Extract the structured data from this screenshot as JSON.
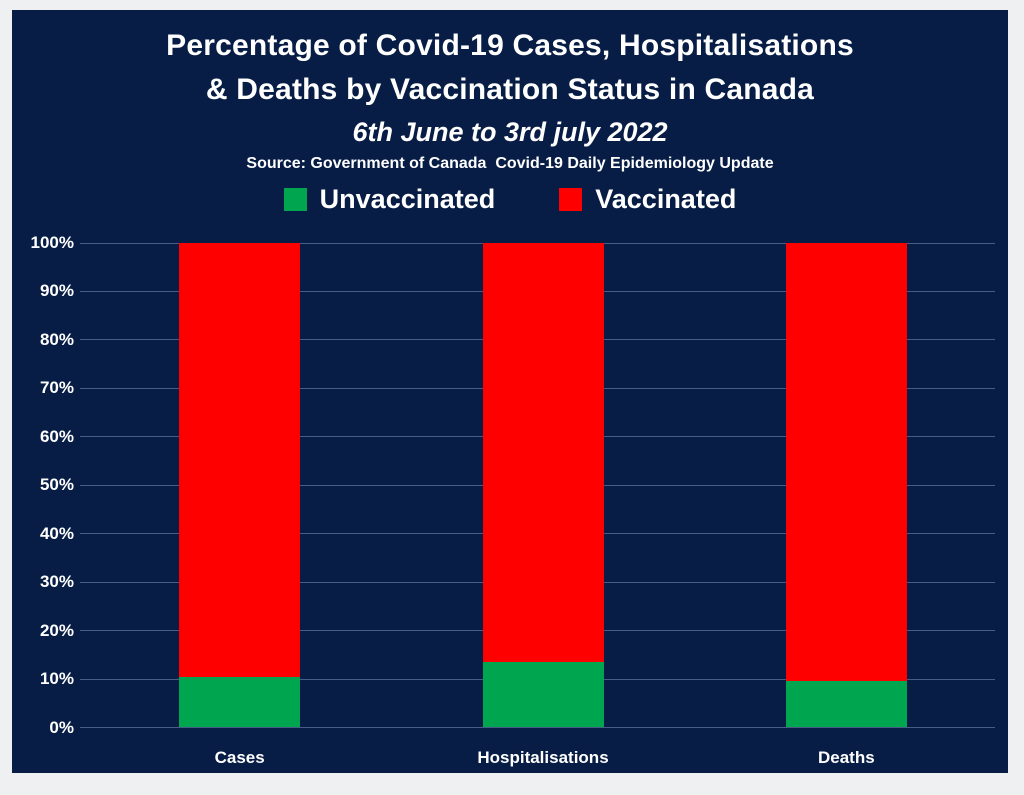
{
  "page": {
    "background": "#eff0f2",
    "panel_background": "#071D45",
    "text_color": "#ffffff"
  },
  "header": {
    "title_line1": "Percentage of Covid-19 Cases, Hospitalisations",
    "title_line2": "& Deaths by Vaccination Status in Canada",
    "subtitle": "6th June to 3rd july 2022",
    "source": "Source: Government of Canada  Covid-19 Daily Epidemiology Update"
  },
  "legend": {
    "items": [
      {
        "label": "Unvaccinated",
        "color": "#00A64F"
      },
      {
        "label": "Vaccinated",
        "color": "#FE0000"
      }
    ]
  },
  "chart_data": {
    "type": "bar",
    "stacked": true,
    "title": "Percentage of Covid-19 Cases, Hospitalisations & Deaths by Vaccination Status in Canada",
    "subtitle": "6th June to 3rd july 2022",
    "source": "Source: Government of Canada  Covid-19 Daily Epidemiology Update",
    "categories": [
      "Cases",
      "Hospitalisations",
      "Deaths"
    ],
    "series": [
      {
        "name": "Unvaccinated",
        "color": "#00A64F",
        "values": [
          10.5,
          13.5,
          9.5
        ]
      },
      {
        "name": "Vaccinated",
        "color": "#FE0000",
        "values": [
          89.5,
          86.5,
          90.5
        ]
      }
    ],
    "xlabel": "",
    "ylabel": "",
    "ylim": [
      0,
      100
    ],
    "ytick_labels": [
      "0%",
      "10%",
      "20%",
      "30%",
      "40%",
      "50%",
      "60%",
      "70%",
      "80%",
      "90%",
      "100%"
    ],
    "grid": true,
    "gridline_color": "rgba(125,144,190,0.55)",
    "legend_position": "top",
    "plot_background": "#071D45"
  }
}
